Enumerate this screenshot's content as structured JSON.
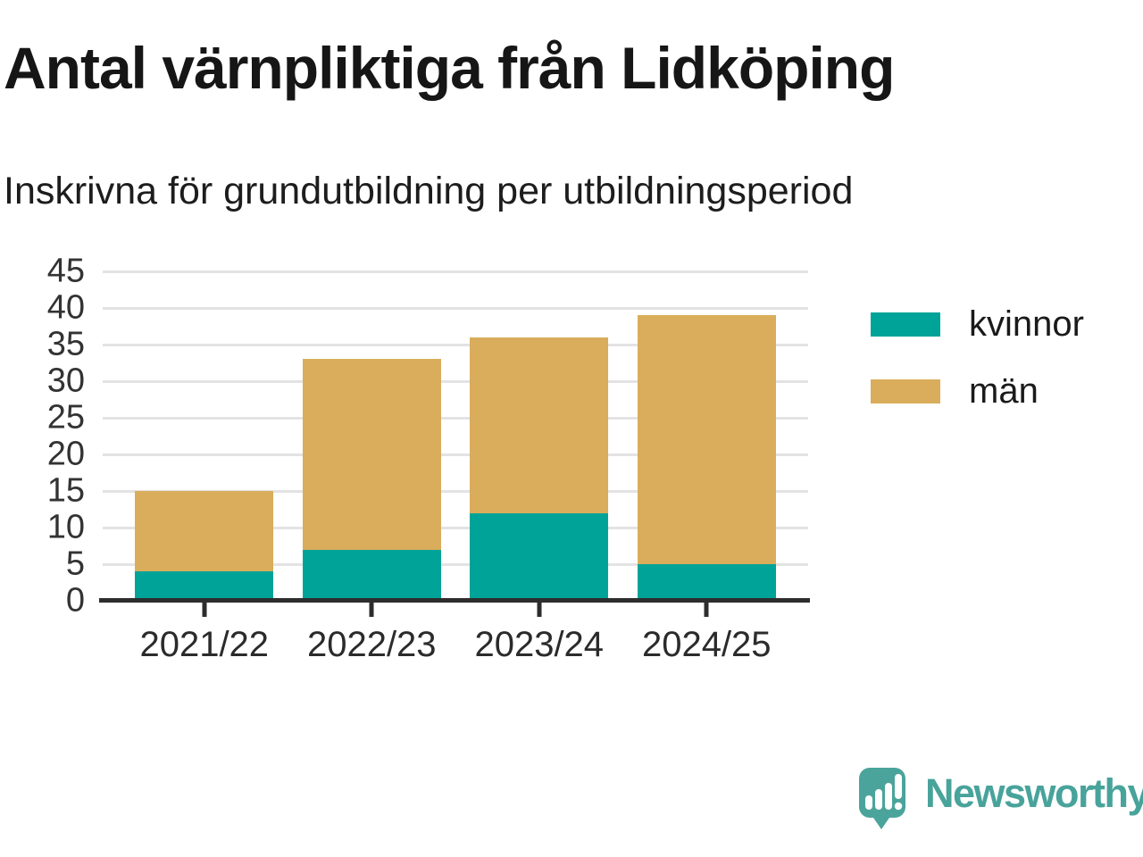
{
  "title": "Antal värnpliktiga från Lidköping",
  "subtitle": "Inskrivna för grundutbildning per utbildningsperiod",
  "footer": {
    "brand": "Newsworthy",
    "brand_color": "#48a39b"
  },
  "colors": {
    "kvinnor": "#00a398",
    "man": "#d9ad5b",
    "axis": "#2d2d2d",
    "grid": "#e3e3e3",
    "text": "#1a1a1a"
  },
  "chart_data": {
    "type": "bar",
    "stacked": true,
    "title": "Antal värnpliktiga från Lidköping",
    "subtitle": "Inskrivna för grundutbildning per utbildningsperiod",
    "categories": [
      "2021/22",
      "2022/23",
      "2023/24",
      "2024/25"
    ],
    "series": [
      {
        "name": "kvinnor",
        "color": "#00a398",
        "values": [
          4,
          7,
          12,
          5
        ]
      },
      {
        "name": "män",
        "color": "#d9ad5b",
        "values": [
          11,
          26,
          24,
          34
        ]
      }
    ],
    "totals": [
      15,
      33,
      36,
      39
    ],
    "xlabel": "",
    "ylabel": "",
    "ylim": [
      0,
      45
    ],
    "yticks": [
      0,
      5,
      10,
      15,
      20,
      25,
      30,
      35,
      40,
      45
    ],
    "grid": true,
    "legend_position": "right"
  }
}
